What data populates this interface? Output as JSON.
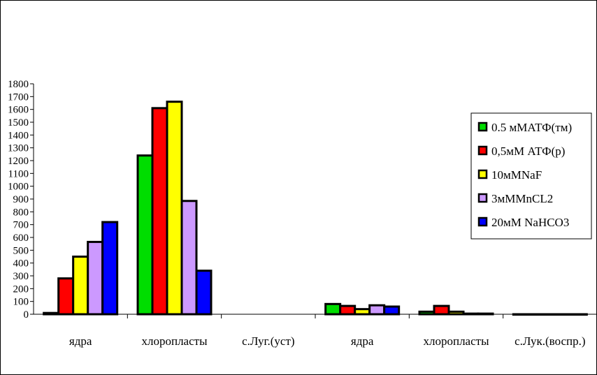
{
  "chart_data": {
    "type": "bar",
    "title": "",
    "xlabel": "",
    "ylabel": "",
    "ylim": [
      0,
      1800
    ],
    "yticks": [
      0,
      100,
      200,
      300,
      400,
      500,
      600,
      700,
      800,
      900,
      1000,
      1100,
      1200,
      1300,
      1400,
      1500,
      1600,
      1700,
      1800
    ],
    "grid": false,
    "legend_position": "right",
    "categories": [
      "ядра",
      "хлоропласты",
      "с.Луг.(уст)",
      "ядра",
      "хлоропласты",
      "с.Лук.(воспр.)"
    ],
    "series": [
      {
        "name": "0.5 мМАТФ(тм)",
        "color": "#00dd00",
        "values": [
          10,
          1240,
          null,
          80,
          20,
          0
        ]
      },
      {
        "name": "0,5мМ АТФ(р)",
        "color": "#ff0000",
        "values": [
          280,
          1610,
          null,
          65,
          65,
          0
        ]
      },
      {
        "name": "10мМNaF",
        "color": "#ffff00",
        "values": [
          450,
          1660,
          null,
          40,
          20,
          0
        ]
      },
      {
        "name": "3мММnCL2",
        "color": "#cc99ff",
        "values": [
          565,
          885,
          null,
          70,
          5,
          0
        ]
      },
      {
        "name": "20мМ NaHCO3",
        "color": "#0000ff",
        "values": [
          720,
          340,
          null,
          60,
          5,
          0
        ]
      }
    ]
  }
}
